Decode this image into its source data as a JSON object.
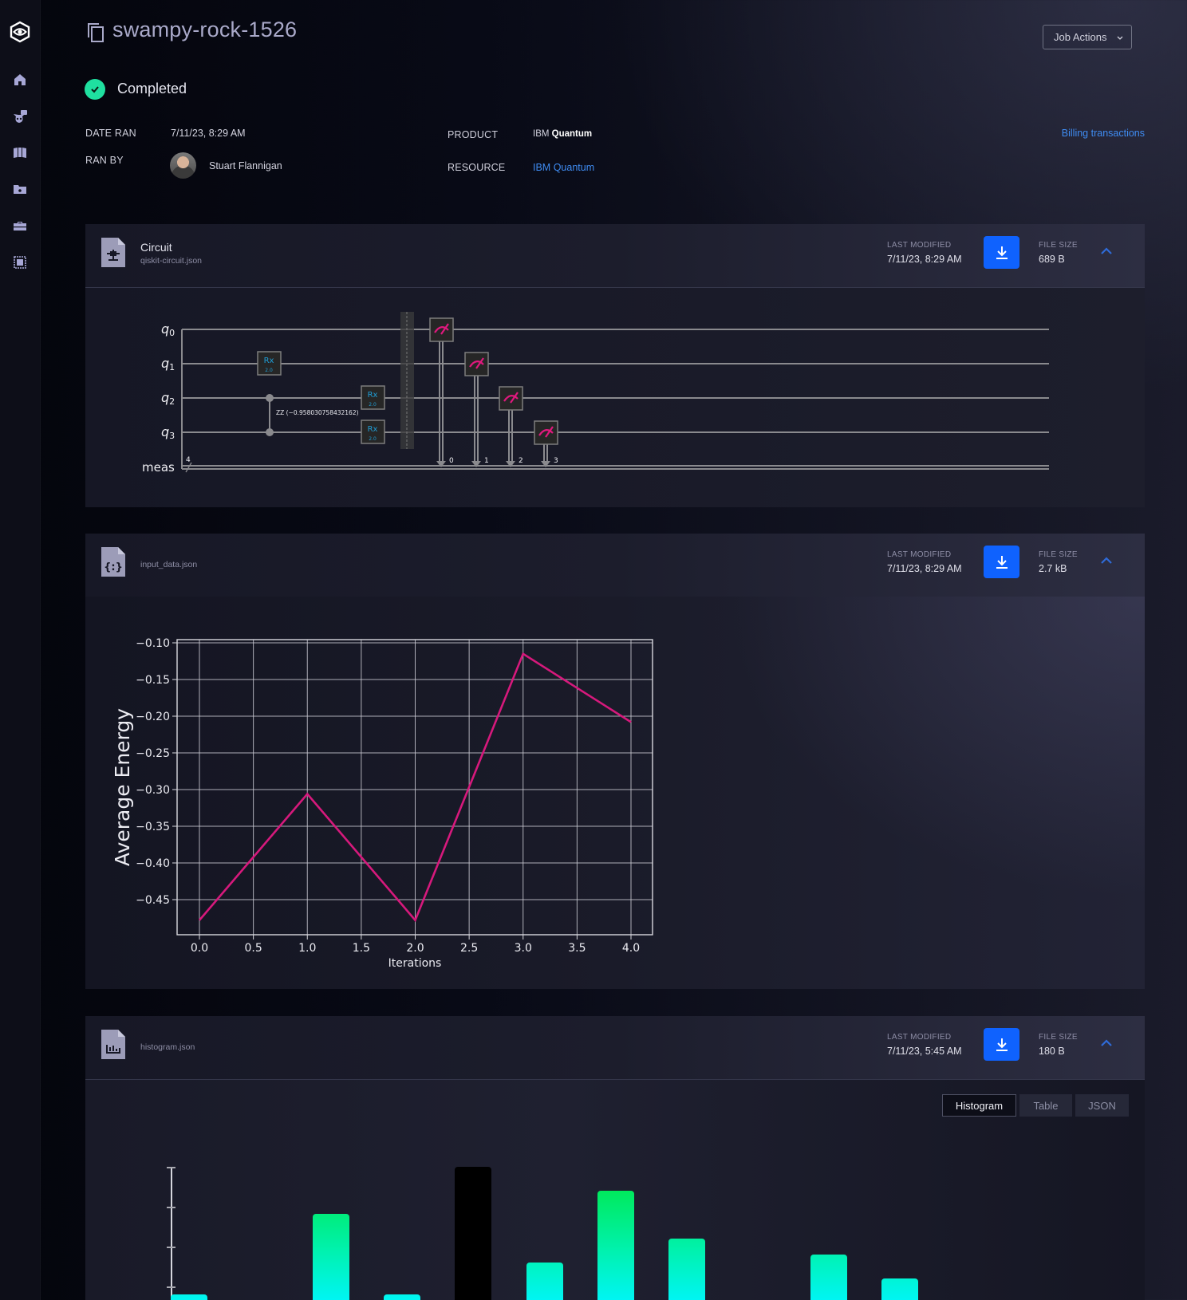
{
  "sidebar": {
    "items": [
      {
        "icon": "logo-eye-hexagon-icon"
      },
      {
        "icon": "home-icon"
      },
      {
        "icon": "alien-chat-icon"
      },
      {
        "icon": "library-book-icon"
      },
      {
        "icon": "folder-icon"
      },
      {
        "icon": "briefcase-icon"
      },
      {
        "icon": "chip-icon"
      }
    ]
  },
  "header": {
    "title": "swampy-rock-1526",
    "job_actions_label": "Job Actions",
    "status": "Completed",
    "status_color": "#1fe0a0",
    "billing_link": "Billing transactions"
  },
  "details": {
    "date_ran_label": "DATE RAN",
    "date_ran": "7/11/23, 8:29 AM",
    "ran_by_label": "RAN BY",
    "ran_by": "Stuart Flannigan",
    "product_label": "PRODUCT",
    "product_prefix": "IBM",
    "product_name": "Quantum",
    "resource_label": "RESOURCE",
    "resource": "IBM Quantum"
  },
  "files": [
    {
      "title": "Circuit",
      "filename": "qiskit-circuit.json",
      "icon": "circuit-file-icon",
      "last_modified_label": "LAST MODIFIED",
      "last_modified": "7/11/23, 8:29 AM",
      "file_size_label": "FILE SIZE",
      "file_size": "689 B"
    },
    {
      "filename": "input_data.json",
      "icon": "json-file-icon",
      "last_modified_label": "LAST MODIFIED",
      "last_modified": "7/11/23, 8:29 AM",
      "file_size_label": "FILE SIZE",
      "file_size": "2.7 kB"
    },
    {
      "filename": "histogram.json",
      "icon": "chart-file-icon",
      "last_modified_label": "LAST MODIFIED",
      "last_modified": "7/11/23, 5:45 AM",
      "file_size_label": "FILE SIZE",
      "file_size": "180 B"
    }
  ],
  "circuit": {
    "qubits": [
      "q0",
      "q1",
      "q2",
      "q3"
    ],
    "classical_register": "meas",
    "classical_width": "4",
    "gates": [
      {
        "type": "Rx",
        "label": "Rx",
        "param": "2.0",
        "qubit": 1
      },
      {
        "type": "ZZ",
        "label": "ZZ (−0.958030758432162)",
        "qubits": [
          2,
          3
        ]
      },
      {
        "type": "Rx",
        "label": "Rx",
        "param": "2.0",
        "qubit": 2
      },
      {
        "type": "Rx",
        "label": "Rx",
        "param": "2.0",
        "qubit": 3
      },
      {
        "type": "barrier"
      },
      {
        "type": "measure",
        "qubit": 0,
        "clbit": "0"
      },
      {
        "type": "measure",
        "qubit": 1,
        "clbit": "1"
      },
      {
        "type": "measure",
        "qubit": 2,
        "clbit": "2"
      },
      {
        "type": "measure",
        "qubit": 3,
        "clbit": "3"
      }
    ]
  },
  "chart_data": {
    "type": "line",
    "title": "",
    "xlabel": "Iterations",
    "ylabel": "Average Energy",
    "x": [
      0,
      1,
      2,
      3,
      4
    ],
    "series": [
      {
        "name": "Average Energy",
        "values": [
          -0.478,
          -0.306,
          -0.478,
          -0.115,
          -0.208
        ],
        "color": "#d6197c"
      }
    ],
    "xticks": [
      "0.0",
      "0.5",
      "1.0",
      "1.5",
      "2.0",
      "2.5",
      "3.0",
      "3.5",
      "4.0"
    ],
    "yticks": [
      "−0.10",
      "−0.15",
      "−0.20",
      "−0.25",
      "−0.30",
      "−0.35",
      "−0.40",
      "−0.45"
    ],
    "xlim": [
      -0.2,
      4.2
    ],
    "ylim": [
      -0.497,
      -0.096
    ],
    "grid": true,
    "legend": null
  },
  "histogram": {
    "tabs": [
      {
        "label": "Histogram",
        "active": true
      },
      {
        "label": "Table",
        "active": false
      },
      {
        "label": "JSON",
        "active": false
      }
    ],
    "bars": [
      {
        "value": 77,
        "color": "gradient"
      },
      {
        "value": 0,
        "color": "gradient"
      },
      {
        "value": 178,
        "color": "gradient"
      },
      {
        "value": 77,
        "color": "gradient"
      },
      {
        "value": 237,
        "color": "#000000"
      },
      {
        "value": 117,
        "color": "gradient"
      },
      {
        "value": 207,
        "color": "gradient"
      },
      {
        "value": 147,
        "color": "gradient"
      },
      {
        "value": 0,
        "color": "gradient"
      },
      {
        "value": 127,
        "color": "gradient"
      },
      {
        "value": 97,
        "color": "gradient"
      }
    ],
    "gradient_top": "#00e63c",
    "gradient_mid": "#00f2b0",
    "gradient_bottom": "#00f6ff"
  }
}
